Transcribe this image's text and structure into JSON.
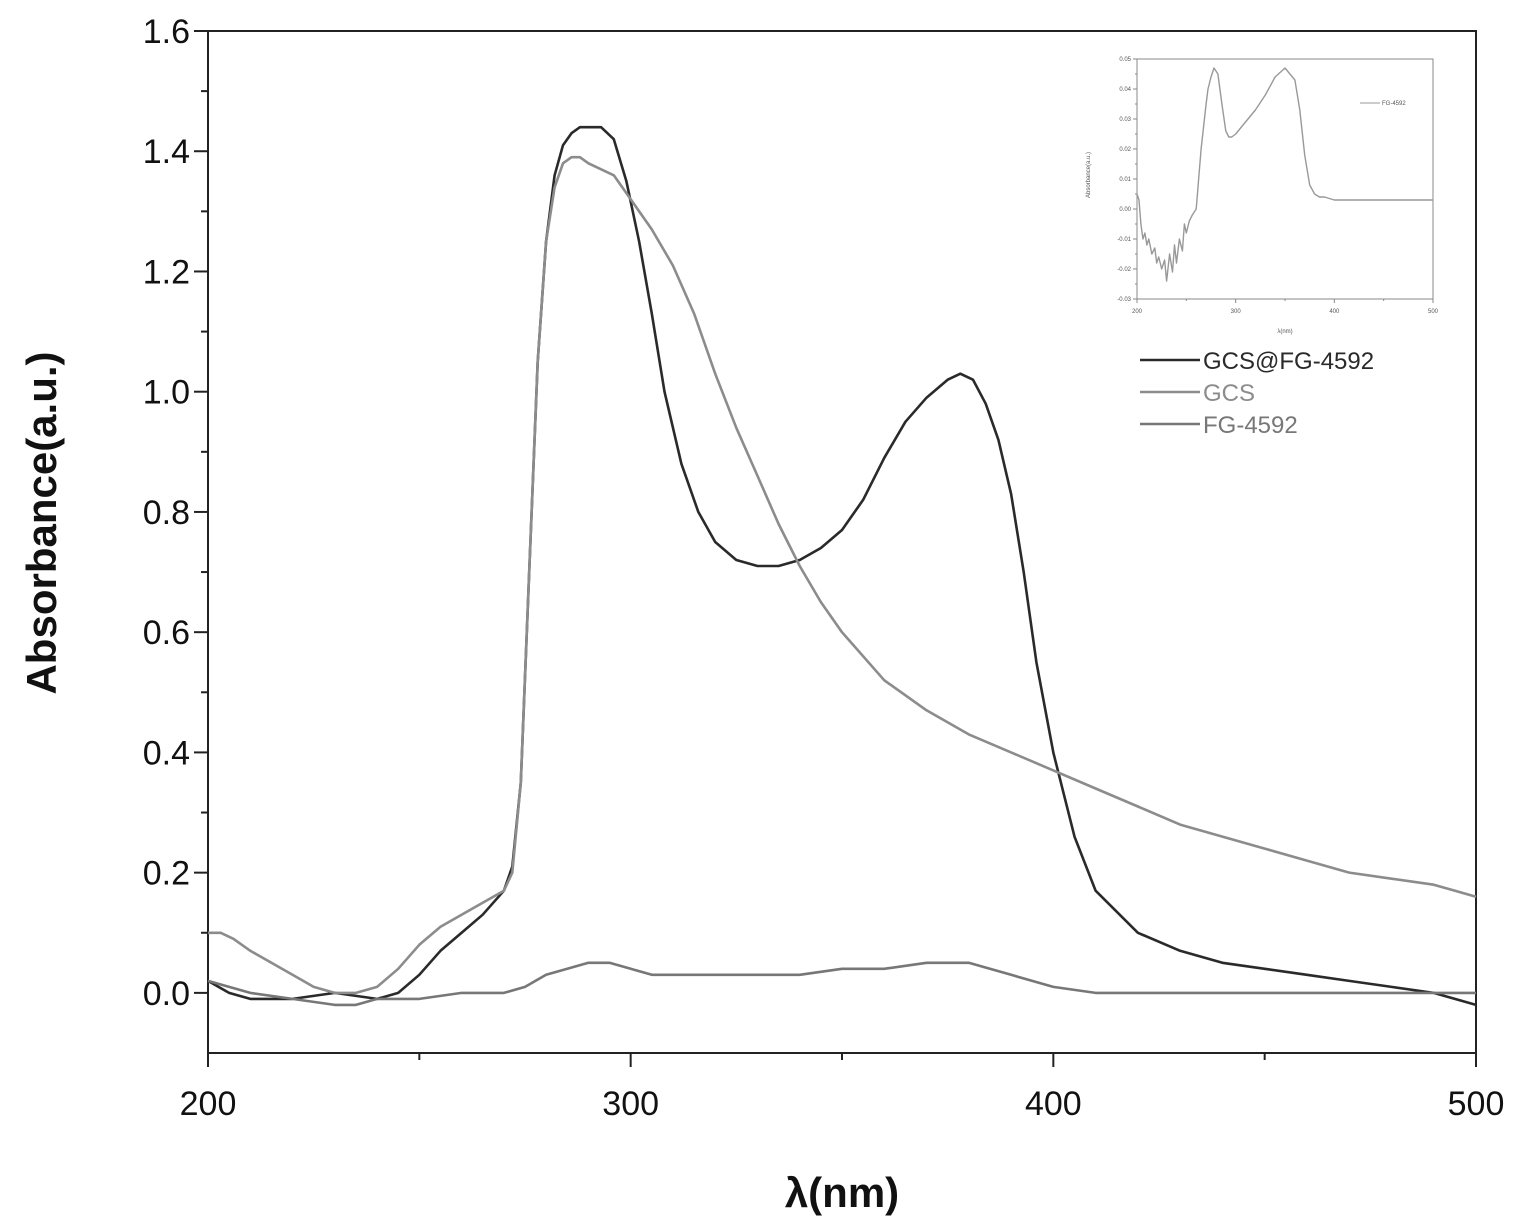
{
  "chart_data": [
    {
      "type": "line",
      "title": "",
      "xlabel": "λ(nm)",
      "ylabel": "Absorbance(a.u.)",
      "xlim": [
        200,
        500
      ],
      "ylim": [
        -0.1,
        1.6
      ],
      "xticks": [
        200,
        300,
        400,
        500
      ],
      "xtick_labels": [
        "200",
        "300",
        "400",
        "500"
      ],
      "yticks": [
        0.0,
        0.2,
        0.4,
        0.6,
        0.8,
        1.0,
        1.2,
        1.4,
        1.6
      ],
      "ytick_labels": [
        "0.0",
        "0.2",
        "0.4",
        "0.6",
        "0.8",
        "1.0",
        "1.2",
        "1.4",
        "1.6"
      ],
      "grid": false,
      "legend_position": "right",
      "series": [
        {
          "name": "GCS@FG-4592",
          "color": "#2a2a2a",
          "x": [
            200,
            205,
            210,
            220,
            230,
            240,
            245,
            250,
            255,
            260,
            265,
            270,
            272,
            274,
            276,
            278,
            280,
            282,
            284,
            286,
            288,
            290,
            293,
            296,
            299,
            302,
            305,
            308,
            312,
            316,
            320,
            325,
            330,
            335,
            340,
            345,
            350,
            355,
            360,
            365,
            370,
            375,
            378,
            381,
            384,
            387,
            390,
            393,
            396,
            400,
            405,
            410,
            420,
            430,
            440,
            450,
            460,
            470,
            480,
            490,
            500
          ],
          "y": [
            0.02,
            0.0,
            -0.01,
            -0.01,
            0.0,
            -0.01,
            0.0,
            0.03,
            0.07,
            0.1,
            0.13,
            0.17,
            0.21,
            0.35,
            0.7,
            1.05,
            1.25,
            1.36,
            1.41,
            1.43,
            1.44,
            1.44,
            1.44,
            1.42,
            1.35,
            1.25,
            1.13,
            1.0,
            0.88,
            0.8,
            0.75,
            0.72,
            0.71,
            0.71,
            0.72,
            0.74,
            0.77,
            0.82,
            0.89,
            0.95,
            0.99,
            1.02,
            1.03,
            1.02,
            0.98,
            0.92,
            0.83,
            0.7,
            0.55,
            0.4,
            0.26,
            0.17,
            0.1,
            0.07,
            0.05,
            0.04,
            0.03,
            0.02,
            0.01,
            0.0,
            -0.02
          ]
        },
        {
          "name": "GCS",
          "color": "#8c8c8c",
          "x": [
            200,
            203,
            206,
            210,
            215,
            220,
            225,
            230,
            235,
            240,
            245,
            250,
            255,
            260,
            265,
            270,
            272,
            274,
            276,
            278,
            280,
            282,
            284,
            286,
            288,
            290,
            293,
            296,
            300,
            305,
            310,
            315,
            320,
            325,
            330,
            335,
            340,
            345,
            350,
            360,
            370,
            380,
            390,
            400,
            410,
            420,
            430,
            440,
            450,
            460,
            470,
            480,
            490,
            500
          ],
          "y": [
            0.1,
            0.1,
            0.09,
            0.07,
            0.05,
            0.03,
            0.01,
            0.0,
            0.0,
            0.01,
            0.04,
            0.08,
            0.11,
            0.13,
            0.15,
            0.17,
            0.2,
            0.35,
            0.7,
            1.05,
            1.25,
            1.34,
            1.38,
            1.39,
            1.39,
            1.38,
            1.37,
            1.36,
            1.32,
            1.27,
            1.21,
            1.13,
            1.03,
            0.94,
            0.86,
            0.78,
            0.71,
            0.65,
            0.6,
            0.52,
            0.47,
            0.43,
            0.4,
            0.37,
            0.34,
            0.31,
            0.28,
            0.26,
            0.24,
            0.22,
            0.2,
            0.19,
            0.18,
            0.16
          ]
        },
        {
          "name": "FG-4592",
          "color": "#777777",
          "x": [
            200,
            210,
            220,
            230,
            235,
            240,
            250,
            260,
            270,
            275,
            280,
            285,
            290,
            295,
            300,
            305,
            310,
            320,
            330,
            340,
            350,
            360,
            370,
            375,
            380,
            385,
            390,
            395,
            400,
            410,
            420,
            440,
            460,
            480,
            500
          ],
          "y": [
            0.02,
            0.0,
            -0.01,
            -0.02,
            -0.02,
            -0.01,
            -0.01,
            0.0,
            0.0,
            0.01,
            0.03,
            0.04,
            0.05,
            0.05,
            0.04,
            0.03,
            0.03,
            0.03,
            0.03,
            0.03,
            0.04,
            0.04,
            0.05,
            0.05,
            0.05,
            0.04,
            0.03,
            0.02,
            0.01,
            0.0,
            0.0,
            0.0,
            0.0,
            0.0,
            0.0
          ]
        }
      ]
    },
    {
      "type": "line",
      "title": "",
      "xlabel": "λ(nm)",
      "ylabel": "Absorbance(a.u.)",
      "xlim": [
        200,
        500
      ],
      "ylim": [
        -0.03,
        0.05
      ],
      "xticks": [
        200,
        300,
        400,
        500
      ],
      "xtick_labels": [
        "200",
        "300",
        "400",
        "500"
      ],
      "yticks": [
        -0.03,
        -0.02,
        -0.01,
        0.0,
        0.01,
        0.02,
        0.03,
        0.04,
        0.05
      ],
      "ytick_labels": [
        "-0.03",
        "-0.02",
        "-0.01",
        "0.00",
        "0.01",
        "0.02",
        "0.03",
        "0.04",
        "0.05"
      ],
      "legend_position": "top-right",
      "series": [
        {
          "name": "FG-4592",
          "color": "#999999",
          "x": [
            200,
            202,
            204,
            206,
            208,
            210,
            212,
            215,
            218,
            220,
            222,
            225,
            228,
            230,
            233,
            236,
            238,
            240,
            243,
            246,
            248,
            250,
            253,
            256,
            260,
            265,
            270,
            272,
            275,
            278,
            282,
            286,
            290,
            293,
            296,
            300,
            305,
            310,
            320,
            330,
            340,
            350,
            360,
            365,
            370,
            375,
            380,
            385,
            390,
            400,
            410,
            420,
            440,
            460,
            480,
            500
          ],
          "y": [
            0.005,
            0.003,
            -0.005,
            -0.01,
            -0.008,
            -0.012,
            -0.01,
            -0.015,
            -0.013,
            -0.018,
            -0.016,
            -0.02,
            -0.017,
            -0.024,
            -0.015,
            -0.021,
            -0.012,
            -0.018,
            -0.01,
            -0.014,
            -0.005,
            -0.008,
            -0.004,
            -0.002,
            0.0,
            0.02,
            0.035,
            0.04,
            0.044,
            0.047,
            0.045,
            0.035,
            0.026,
            0.024,
            0.024,
            0.025,
            0.027,
            0.029,
            0.033,
            0.038,
            0.044,
            0.047,
            0.043,
            0.033,
            0.018,
            0.008,
            0.005,
            0.004,
            0.004,
            0.003,
            0.003,
            0.003,
            0.003,
            0.003,
            0.003,
            0.003
          ]
        }
      ]
    }
  ]
}
